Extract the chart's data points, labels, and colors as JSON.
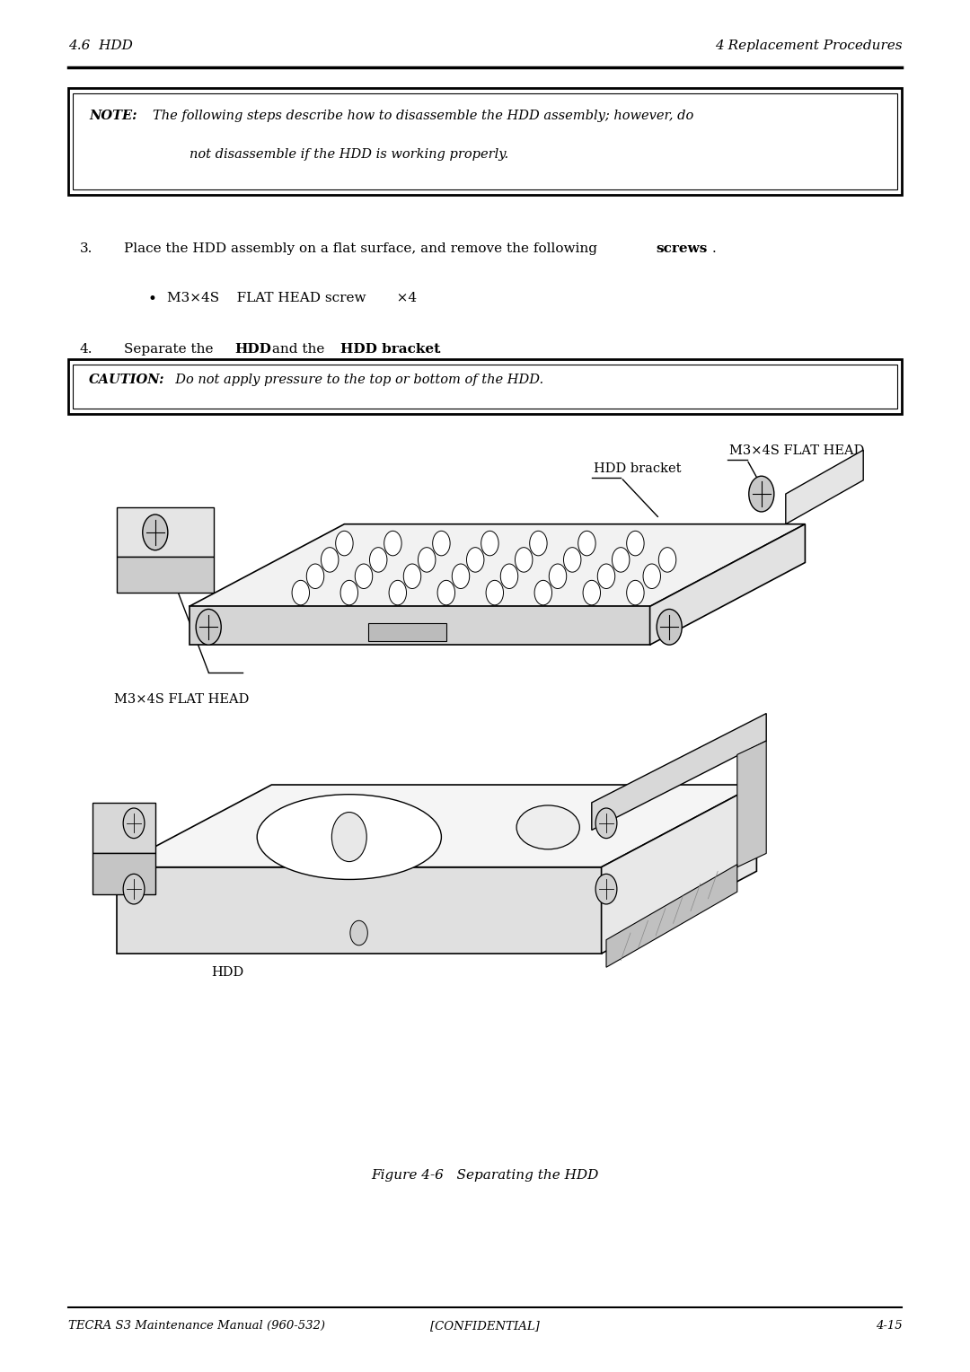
{
  "page_width": 10.8,
  "page_height": 15.28,
  "bg_color": "#ffffff",
  "header_left": "4.6  HDD",
  "header_right": "4 Replacement Procedures",
  "footer_left": "TECRA S3 Maintenance Manual (960-532)",
  "footer_center": "[CONFIDENTIAL]",
  "footer_right": "4-15",
  "note_bold": "NOTE:",
  "note_line1": "The following steps describe how to disassemble the HDD assembly; however, do",
  "note_line2": "not disassemble if the HDD is working properly.",
  "step3_text": "Place the HDD assembly on a flat surface, and remove the following ",
  "step3_bold": "screws",
  "bullet_text": "M3×4S    FLAT HEAD screw       ×4",
  "step4_pre": "Separate the ",
  "step4_bold1": "HDD",
  "step4_mid": " and the ",
  "step4_bold2": "HDD bracket",
  "caution_bold": "CAUTION:",
  "caution_text": "  Do not apply pressure to the top or bottom of the HDD.",
  "fig_caption": "Figure 4-6   Separating the HDD",
  "label_top_right": "M3×4S FLAT HEAD",
  "label_hdd_bracket": "HDD bracket",
  "label_bottom_left": "M3×4S FLAT HEAD",
  "label_hdd": "HDD",
  "font_family": "DejaVu Serif",
  "text_color": "#000000"
}
